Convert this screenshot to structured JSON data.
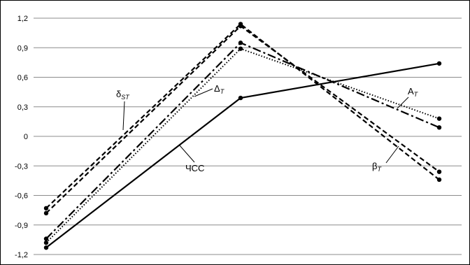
{
  "chart_data": {
    "type": "line",
    "title": "",
    "xlabel": "",
    "ylabel": "",
    "ylim": [
      -1.2,
      1.2
    ],
    "yticks": [
      1.2,
      0.9,
      0.6,
      0.3,
      0,
      -0.3,
      -0.6,
      -0.9,
      -1.2
    ],
    "ytick_labels": [
      "1,2",
      "0,9",
      "0,6",
      "0,3",
      "0",
      "-0,3",
      "-0,6",
      "-0,9",
      "-1,2"
    ],
    "grid": true,
    "x": [
      1,
      2,
      3
    ],
    "series": [
      {
        "name": "ЧСС",
        "label_main": "ЧСС",
        "label_sub": "",
        "values": [
          -1.13,
          0.39,
          0.74
        ],
        "dash": "solid",
        "color": "#000000"
      },
      {
        "name": "δST",
        "label_main": "δ",
        "label_sub": "ST",
        "values": [
          -0.73,
          1.14,
          -0.44
        ],
        "dash": "dash",
        "color": "#000000"
      },
      {
        "name": "βT",
        "label_main": "β",
        "label_sub": "T",
        "values": [
          -0.78,
          1.12,
          -0.36
        ],
        "dash": "dash",
        "color": "#000000"
      },
      {
        "name": "ΔT",
        "label_main": "Δ",
        "label_sub": "T",
        "values": [
          -1.04,
          0.95,
          0.09
        ],
        "dash": "dashdot",
        "color": "#000000"
      },
      {
        "name": "AT",
        "label_main": "A",
        "label_sub": "T",
        "values": [
          -1.08,
          0.89,
          0.18
        ],
        "dash": "dot",
        "color": "#000000"
      }
    ]
  }
}
